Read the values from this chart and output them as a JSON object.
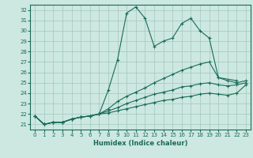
{
  "xlabel": "Humidex (Indice chaleur)",
  "ylabel": "",
  "xlim": [
    -0.5,
    23.5
  ],
  "ylim": [
    20.5,
    32.5
  ],
  "xticks": [
    0,
    1,
    2,
    3,
    4,
    5,
    6,
    7,
    8,
    9,
    10,
    11,
    12,
    13,
    14,
    15,
    16,
    17,
    18,
    19,
    20,
    21,
    22,
    23
  ],
  "yticks": [
    21,
    22,
    23,
    24,
    25,
    26,
    27,
    28,
    29,
    30,
    31,
    32
  ],
  "bg_color": "#cde8e0",
  "line_color": "#1a6b5a",
  "grid_color": "#a0c8bc",
  "lines": [
    {
      "x": [
        0,
        1,
        2,
        3,
        4,
        5,
        6,
        7,
        8,
        9,
        10,
        11,
        12,
        13,
        14,
        15,
        16,
        17,
        18,
        19,
        20,
        22
      ],
      "y": [
        21.8,
        21.0,
        21.2,
        21.2,
        21.5,
        21.7,
        21.8,
        22.0,
        24.3,
        27.2,
        31.7,
        32.3,
        31.2,
        28.5,
        29.0,
        29.3,
        30.7,
        31.2,
        30.0,
        29.3,
        25.5,
        25.2
      ]
    },
    {
      "x": [
        0,
        1,
        2,
        3,
        4,
        5,
        6,
        7,
        8,
        9,
        10,
        11,
        12,
        13,
        14,
        15,
        16,
        17,
        18,
        19,
        20,
        21,
        22,
        23
      ],
      "y": [
        21.8,
        21.0,
        21.2,
        21.2,
        21.5,
        21.7,
        21.8,
        22.0,
        22.5,
        23.2,
        23.7,
        24.1,
        24.5,
        25.0,
        25.4,
        25.8,
        26.2,
        26.5,
        26.8,
        27.0,
        25.5,
        25.2,
        25.0,
        25.2
      ]
    },
    {
      "x": [
        0,
        1,
        2,
        3,
        4,
        5,
        6,
        7,
        8,
        9,
        10,
        11,
        12,
        13,
        14,
        15,
        16,
        17,
        18,
        19,
        20,
        21,
        22,
        23
      ],
      "y": [
        21.8,
        21.0,
        21.2,
        21.2,
        21.5,
        21.7,
        21.8,
        22.0,
        22.3,
        22.6,
        23.0,
        23.3,
        23.6,
        23.9,
        24.1,
        24.3,
        24.6,
        24.7,
        24.9,
        25.0,
        24.8,
        24.7,
        24.8,
        25.0
      ]
    },
    {
      "x": [
        0,
        1,
        2,
        3,
        4,
        5,
        6,
        7,
        8,
        9,
        10,
        11,
        12,
        13,
        14,
        15,
        16,
        17,
        18,
        19,
        20,
        21,
        22,
        23
      ],
      "y": [
        21.8,
        21.0,
        21.2,
        21.2,
        21.5,
        21.7,
        21.8,
        22.0,
        22.1,
        22.3,
        22.5,
        22.7,
        22.9,
        23.1,
        23.3,
        23.4,
        23.6,
        23.7,
        23.9,
        24.0,
        23.9,
        23.8,
        24.0,
        24.8
      ]
    }
  ]
}
